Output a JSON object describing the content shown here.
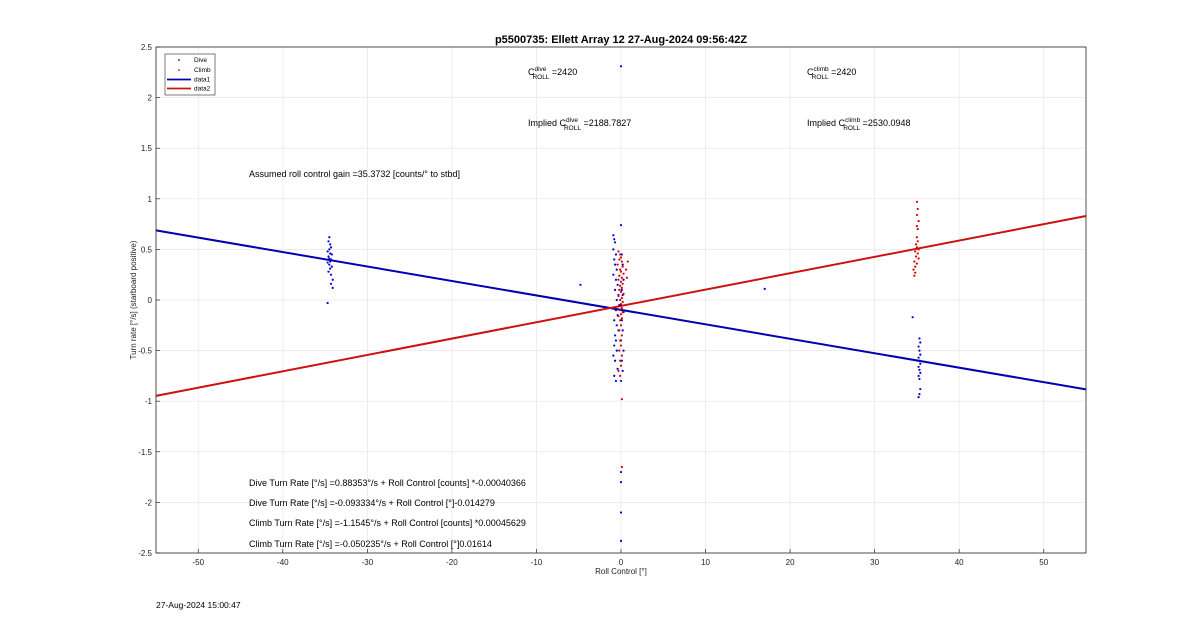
{
  "chart_data": {
    "type": "scatter",
    "title": "p5500735: Ellett Array 12 27-Aug-2024 09:56:42Z",
    "xlabel": "Roll Control [°]",
    "ylabel": "Turn rate [°/s] (starboard positive)",
    "xlim": [
      -55,
      55
    ],
    "ylim": [
      -2.5,
      2.5
    ],
    "xticks": [
      -50,
      -40,
      -30,
      -20,
      -10,
      0,
      10,
      20,
      30,
      40,
      50
    ],
    "yticks": [
      -2.5,
      -2,
      -1.5,
      -1,
      -0.5,
      0,
      0.5,
      1,
      1.5,
      2,
      2.5
    ],
    "grid": true,
    "legend_position": "top-left",
    "legend": [
      "Dive",
      "Climb",
      "data1",
      "data2"
    ],
    "colors": {
      "dive": "#0000cc",
      "climb": "#d40000",
      "fit_dive": "#0000b3",
      "fit_climb": "#cc1111"
    },
    "series": [
      {
        "name": "Dive",
        "kind": "points",
        "color": "#0000cc",
        "points": [
          [
            -34.5,
            0.62
          ],
          [
            -34.6,
            0.58
          ],
          [
            -34.4,
            0.55
          ],
          [
            -34.3,
            0.52
          ],
          [
            -34.5,
            0.5
          ],
          [
            -34.7,
            0.48
          ],
          [
            -34.4,
            0.46
          ],
          [
            -34.2,
            0.45
          ],
          [
            -34.6,
            0.43
          ],
          [
            -34.5,
            0.41
          ],
          [
            -34.3,
            0.4
          ],
          [
            -34.4,
            0.38
          ],
          [
            -34.7,
            0.37
          ],
          [
            -34.5,
            0.35
          ],
          [
            -34.2,
            0.33
          ],
          [
            -34.4,
            0.31
          ],
          [
            -34.6,
            0.28
          ],
          [
            -34.3,
            0.25
          ],
          [
            -34.1,
            0.2
          ],
          [
            -34.3,
            0.16
          ],
          [
            -34.1,
            0.12
          ],
          [
            -34.7,
            -0.03
          ],
          [
            -0.9,
            0.64
          ],
          [
            -0.8,
            0.6
          ],
          [
            -0.7,
            0.57
          ],
          [
            -0.9,
            0.5
          ],
          [
            -0.6,
            0.45
          ],
          [
            -0.8,
            0.4
          ],
          [
            -0.7,
            0.35
          ],
          [
            -0.5,
            0.3
          ],
          [
            -0.9,
            0.25
          ],
          [
            -0.6,
            0.2
          ],
          [
            -0.4,
            0.15
          ],
          [
            -0.7,
            0.1
          ],
          [
            -0.3,
            0.05
          ],
          [
            -0.5,
            0.0
          ],
          [
            -0.2,
            -0.05
          ],
          [
            -0.6,
            -0.1
          ],
          [
            -0.4,
            -0.15
          ],
          [
            -0.8,
            -0.2
          ],
          [
            -0.5,
            -0.25
          ],
          [
            -0.3,
            -0.3
          ],
          [
            -0.7,
            -0.35
          ],
          [
            -0.6,
            -0.4
          ],
          [
            -0.8,
            -0.45
          ],
          [
            -0.5,
            -0.5
          ],
          [
            -0.9,
            -0.55
          ],
          [
            -0.7,
            -0.6
          ],
          [
            -0.4,
            -0.68
          ],
          [
            -0.8,
            -0.75
          ],
          [
            -0.6,
            -0.8
          ],
          [
            0.0,
            0.74
          ],
          [
            0.1,
            0.45
          ],
          [
            0.2,
            0.35
          ],
          [
            0.3,
            0.2
          ],
          [
            0.1,
            0.1
          ],
          [
            0.2,
            0.05
          ],
          [
            0.0,
            -0.05
          ],
          [
            0.3,
            -0.12
          ],
          [
            0.1,
            -0.2
          ],
          [
            0.2,
            -0.3
          ],
          [
            0.0,
            -0.4
          ],
          [
            0.3,
            -0.5
          ],
          [
            0.1,
            -0.6
          ],
          [
            0.2,
            -0.7
          ],
          [
            0.0,
            -0.8
          ],
          [
            0.0,
            2.31
          ],
          [
            0.0,
            -1.7
          ],
          [
            0.0,
            -1.8
          ],
          [
            0.0,
            -2.1
          ],
          [
            0.0,
            -2.38
          ],
          [
            -4.8,
            0.15
          ],
          [
            17.0,
            0.11
          ],
          [
            34.5,
            -0.17
          ],
          [
            35.3,
            -0.38
          ],
          [
            35.4,
            -0.42
          ],
          [
            35.2,
            -0.46
          ],
          [
            35.3,
            -0.5
          ],
          [
            35.4,
            -0.54
          ],
          [
            35.2,
            -0.57
          ],
          [
            35.3,
            -0.6
          ],
          [
            35.4,
            -0.63
          ],
          [
            35.2,
            -0.66
          ],
          [
            35.3,
            -0.69
          ],
          [
            35.4,
            -0.72
          ],
          [
            35.2,
            -0.75
          ],
          [
            35.3,
            -0.78
          ],
          [
            35.4,
            -0.88
          ],
          [
            35.3,
            -0.93
          ],
          [
            35.2,
            -0.96
          ]
        ]
      },
      {
        "name": "Climb",
        "kind": "points",
        "color": "#d40000",
        "points": [
          [
            -0.3,
            0.48
          ],
          [
            -0.1,
            0.45
          ],
          [
            0.0,
            0.42
          ],
          [
            -0.2,
            0.4
          ],
          [
            0.1,
            0.38
          ],
          [
            -0.4,
            0.35
          ],
          [
            0.2,
            0.33
          ],
          [
            -0.1,
            0.3
          ],
          [
            0.0,
            0.28
          ],
          [
            0.3,
            0.26
          ],
          [
            -0.2,
            0.24
          ],
          [
            0.1,
            0.22
          ],
          [
            -0.3,
            0.2
          ],
          [
            0.0,
            0.18
          ],
          [
            0.2,
            0.16
          ],
          [
            -0.1,
            0.14
          ],
          [
            0.1,
            0.12
          ],
          [
            -0.2,
            0.1
          ],
          [
            0.0,
            0.08
          ],
          [
            0.3,
            0.06
          ],
          [
            -0.3,
            0.04
          ],
          [
            0.1,
            0.02
          ],
          [
            -0.1,
            0.0
          ],
          [
            0.2,
            -0.02
          ],
          [
            0.0,
            -0.04
          ],
          [
            -0.2,
            -0.06
          ],
          [
            0.1,
            -0.08
          ],
          [
            -0.1,
            -0.1
          ],
          [
            0.2,
            -0.12
          ],
          [
            0.0,
            -0.14
          ],
          [
            -0.3,
            -0.16
          ],
          [
            0.1,
            -0.18
          ],
          [
            -0.1,
            -0.2
          ],
          [
            0.0,
            -0.25
          ],
          [
            -0.2,
            -0.3
          ],
          [
            0.1,
            -0.35
          ],
          [
            -0.1,
            -0.4
          ],
          [
            0.0,
            -0.45
          ],
          [
            -0.2,
            -0.5
          ],
          [
            0.1,
            -0.55
          ],
          [
            -0.1,
            -0.6
          ],
          [
            0.0,
            -0.65
          ],
          [
            -0.3,
            -0.7
          ],
          [
            -0.1,
            -0.75
          ],
          [
            0.8,
            0.38
          ],
          [
            0.6,
            0.3
          ],
          [
            0.7,
            0.22
          ],
          [
            0.1,
            -0.98
          ],
          [
            0.1,
            -1.65
          ],
          [
            35.0,
            0.97
          ],
          [
            35.1,
            0.9
          ],
          [
            35.0,
            0.84
          ],
          [
            35.2,
            0.78
          ],
          [
            35.0,
            0.73
          ],
          [
            35.1,
            0.7
          ],
          [
            35.0,
            0.62
          ],
          [
            35.1,
            0.58
          ],
          [
            34.9,
            0.55
          ],
          [
            35.0,
            0.52
          ],
          [
            35.2,
            0.5
          ],
          [
            34.8,
            0.48
          ],
          [
            35.1,
            0.46
          ],
          [
            34.9,
            0.43
          ],
          [
            35.2,
            0.41
          ],
          [
            34.7,
            0.38
          ],
          [
            35.0,
            0.36
          ],
          [
            34.8,
            0.33
          ],
          [
            34.6,
            0.3
          ],
          [
            34.8,
            0.27
          ],
          [
            34.7,
            0.24
          ]
        ]
      },
      {
        "name": "data1",
        "kind": "line",
        "color": "#0000b3",
        "x": [
          -55,
          55
        ],
        "y": [
          0.688,
          -0.883
        ]
      },
      {
        "name": "data2",
        "kind": "line",
        "color": "#cc1111",
        "x": [
          -55,
          55
        ],
        "y": [
          -0.947,
          0.83
        ]
      }
    ],
    "annotations": {
      "c_dive_base": "C",
      "c_dive_sup": "dive",
      "c_dive_sub": "ROLL",
      "c_dive_value": " =2420",
      "c_climb_base": "C",
      "c_climb_sup": "climb",
      "c_climb_sub": "ROLL",
      "c_climb_value": " =2420",
      "implied_dive_prefix": "Implied C",
      "implied_dive_sup": "dive",
      "implied_dive_sub": "ROLL",
      "implied_dive_value": " =2188.7827",
      "implied_climb_prefix": "Implied C",
      "implied_climb_sup": "climb",
      "implied_climb_sub": "ROLL",
      "implied_climb_value": " =2530.0948",
      "gain": "Assumed roll control gain =35.3732 [counts/° to stbd]",
      "fit1": "Dive Turn Rate [°/s] =0.88353°/s + Roll Control [counts] *-0.00040366",
      "fit2": "Dive Turn Rate [°/s] =-0.093334°/s + Roll Control [°]-0.014279",
      "fit3": "Climb Turn Rate [°/s] =-1.1545°/s + Roll Control [counts] *0.00045629",
      "fit4": "Climb Turn Rate [°/s] =-0.050235°/s + Roll Control [°]0.01614"
    }
  },
  "footer": {
    "timestamp": "27-Aug-2024 15:00:47"
  }
}
